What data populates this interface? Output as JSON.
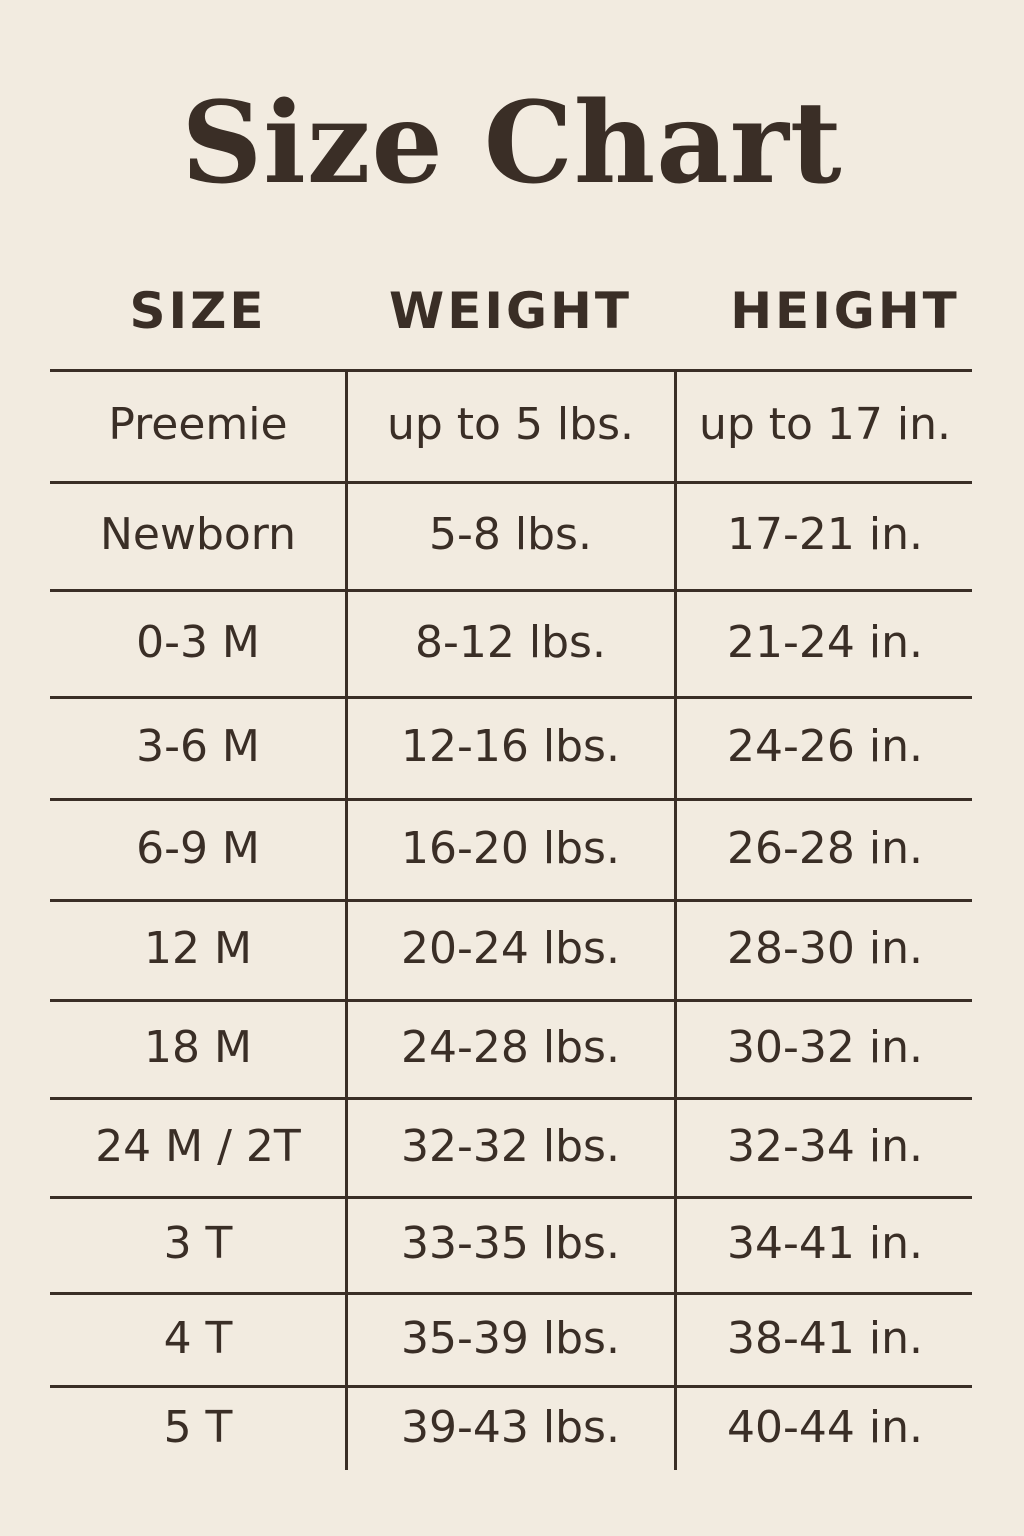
{
  "title": "Size Chart",
  "headers": [
    "SIZE",
    "WEIGHT",
    "HEIGHT"
  ],
  "rows": [
    [
      "Preemie",
      "up to 5 lbs.",
      "up to 17 in."
    ],
    [
      "Newborn",
      "5-8 lbs.",
      "17-21 in."
    ],
    [
      "0-3 M",
      "8-12 lbs.",
      "21-24 in."
    ],
    [
      "3-6 M",
      "12-16 lbs.",
      "24-26 in."
    ],
    [
      "6-9 M",
      "16-20 lbs.",
      "26-28 in."
    ],
    [
      "12 M",
      "20-24 lbs.",
      "28-30 in."
    ],
    [
      "18 M",
      "24-28 lbs.",
      "30-32 in."
    ],
    [
      "24 M / 2T",
      "32-32 lbs.",
      "32-34 in."
    ],
    [
      "3 T",
      "33-35 lbs.",
      "34-41 in."
    ],
    [
      "4 T",
      "35-39 lbs.",
      "38-41 in."
    ],
    [
      "5 T",
      "39-43 lbs.",
      "40-44 in."
    ]
  ],
  "colors": {
    "background": "#f2ebe0",
    "text": "#3a2e26"
  }
}
